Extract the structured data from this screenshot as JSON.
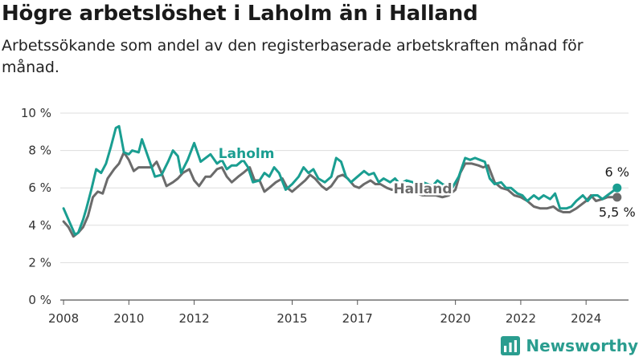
{
  "header": {
    "title": "Högre arbetslöshet i Laholm än i Halland",
    "subtitle": "Arbetssökande som andel av den registerbaserade arbetskraften månad för månad."
  },
  "brand": {
    "name": "Newsworthy",
    "logo_icon": "bar-chart-logo-icon",
    "color": "#2a9d8f"
  },
  "chart_data": {
    "type": "line",
    "x_unit": "year",
    "xlim": [
      2007.9,
      2025.3
    ],
    "ylim": [
      0,
      10
    ],
    "y_ticks": [
      0,
      2,
      4,
      6,
      8,
      10
    ],
    "y_tick_labels": [
      "0 %",
      "2 %",
      "4 %",
      "6 %",
      "8 %",
      "10 %"
    ],
    "x_ticks": [
      2008,
      2010,
      2012,
      2015,
      2017,
      2020,
      2022,
      2024
    ],
    "x_tick_labels": [
      "2008",
      "2010",
      "2012",
      "2015",
      "2017",
      "2020",
      "2022",
      "2024"
    ],
    "grid": "horizontal",
    "series": [
      {
        "name": "Laholm",
        "color": "#1a9e91",
        "label_x": 2013.6,
        "label_y": 7.6,
        "end_label": "6 %",
        "x": [
          2008.0,
          2008.2,
          2008.35,
          2008.45,
          2008.6,
          2008.7,
          2008.85,
          2009.0,
          2009.15,
          2009.3,
          2009.45,
          2009.6,
          2009.7,
          2009.85,
          2010.0,
          2010.1,
          2010.3,
          2010.4,
          2010.6,
          2010.8,
          2011.0,
          2011.2,
          2011.35,
          2011.5,
          2011.6,
          2011.8,
          2012.0,
          2012.2,
          2012.35,
          2012.5,
          2012.7,
          2012.85,
          2013.0,
          2013.15,
          2013.3,
          2013.5,
          2013.65,
          2013.8,
          2014.0,
          2014.15,
          2014.3,
          2014.45,
          2014.6,
          2014.8,
          2015.0,
          2015.2,
          2015.35,
          2015.5,
          2015.65,
          2015.8,
          2016.0,
          2016.2,
          2016.35,
          2016.5,
          2016.65,
          2016.8,
          2017.0,
          2017.2,
          2017.35,
          2017.5,
          2017.65,
          2017.8,
          2018.0,
          2018.15,
          2018.3,
          2018.5,
          2018.7,
          2018.85,
          2019.0,
          2019.15,
          2019.3,
          2019.45,
          2019.6,
          2019.75,
          2019.9,
          2020.1,
          2020.3,
          2020.45,
          2020.6,
          2020.75,
          2020.9,
          2021.05,
          2021.2,
          2021.4,
          2021.55,
          2021.7,
          2021.9,
          2022.05,
          2022.2,
          2022.4,
          2022.55,
          2022.7,
          2022.9,
          2023.05,
          2023.2,
          2023.4,
          2023.55,
          2023.7,
          2023.9,
          2024.05,
          2024.2,
          2024.35,
          2024.5,
          2024.65,
          2024.8,
          2024.95
        ],
        "values": [
          4.9,
          4.1,
          3.5,
          3.6,
          4.3,
          4.9,
          5.9,
          7.0,
          6.8,
          7.3,
          8.2,
          9.2,
          9.3,
          7.9,
          7.8,
          8.0,
          7.9,
          8.6,
          7.6,
          6.6,
          6.7,
          7.4,
          8.0,
          7.7,
          6.8,
          7.5,
          8.4,
          7.4,
          7.6,
          7.8,
          7.3,
          7.5,
          7.0,
          7.2,
          7.2,
          7.5,
          7.1,
          6.3,
          6.4,
          6.8,
          6.6,
          7.1,
          6.8,
          5.9,
          6.2,
          6.6,
          7.1,
          6.8,
          7.0,
          6.5,
          6.3,
          6.6,
          7.6,
          7.4,
          6.6,
          6.3,
          6.6,
          6.9,
          6.7,
          6.8,
          6.3,
          6.5,
          6.3,
          6.5,
          6.2,
          6.4,
          6.3,
          6.2,
          6.3,
          6.2,
          6.1,
          6.4,
          6.2,
          6.1,
          6.0,
          6.6,
          7.6,
          7.5,
          7.6,
          7.5,
          7.4,
          6.5,
          6.2,
          6.3,
          6.0,
          6.0,
          5.7,
          5.6,
          5.3,
          5.6,
          5.4,
          5.6,
          5.4,
          5.7,
          4.9,
          4.9,
          5.0,
          5.3,
          5.6,
          5.3,
          5.6,
          5.6,
          5.4,
          5.6,
          5.8,
          6.0
        ]
      },
      {
        "name": "Halland",
        "color": "#6b6b6b",
        "label_x": 2019.0,
        "label_y": 5.7,
        "end_label": "5,5 %",
        "x": [
          2008.0,
          2008.15,
          2008.3,
          2008.45,
          2008.6,
          2008.75,
          2008.9,
          2009.05,
          2009.2,
          2009.35,
          2009.55,
          2009.7,
          2009.85,
          2010.0,
          2010.15,
          2010.3,
          2010.5,
          2010.7,
          2010.85,
          2011.0,
          2011.15,
          2011.35,
          2011.5,
          2011.65,
          2011.85,
          2012.0,
          2012.15,
          2012.35,
          2012.5,
          2012.7,
          2012.85,
          2013.0,
          2013.15,
          2013.35,
          2013.5,
          2013.7,
          2013.85,
          2014.0,
          2014.15,
          2014.3,
          2014.5,
          2014.7,
          2014.85,
          2015.0,
          2015.2,
          2015.4,
          2015.55,
          2015.7,
          2015.9,
          2016.05,
          2016.2,
          2016.4,
          2016.55,
          2016.7,
          2016.9,
          2017.05,
          2017.2,
          2017.4,
          2017.55,
          2017.7,
          2017.9,
          2018.05,
          2018.2,
          2018.4,
          2018.6,
          2018.8,
          2019.0,
          2019.2,
          2019.4,
          2019.6,
          2019.8,
          2020.0,
          2020.15,
          2020.3,
          2020.5,
          2020.7,
          2020.85,
          2021.0,
          2021.2,
          2021.4,
          2021.6,
          2021.8,
          2022.0,
          2022.2,
          2022.4,
          2022.6,
          2022.8,
          2023.0,
          2023.15,
          2023.3,
          2023.5,
          2023.7,
          2023.85,
          2024.0,
          2024.15,
          2024.3,
          2024.5,
          2024.65,
          2024.8,
          2024.95
        ],
        "values": [
          4.2,
          3.9,
          3.4,
          3.6,
          3.9,
          4.5,
          5.5,
          5.8,
          5.7,
          6.5,
          7.0,
          7.3,
          7.9,
          7.5,
          6.9,
          7.1,
          7.1,
          7.1,
          7.4,
          6.8,
          6.1,
          6.3,
          6.5,
          6.8,
          7.0,
          6.4,
          6.1,
          6.6,
          6.6,
          7.0,
          7.1,
          6.6,
          6.3,
          6.6,
          6.8,
          7.1,
          6.4,
          6.4,
          5.8,
          6.0,
          6.3,
          6.5,
          6.0,
          5.8,
          6.1,
          6.4,
          6.7,
          6.5,
          6.1,
          5.9,
          6.1,
          6.6,
          6.7,
          6.5,
          6.1,
          6.0,
          6.2,
          6.4,
          6.2,
          6.2,
          6.0,
          5.9,
          5.9,
          5.8,
          5.7,
          5.7,
          5.6,
          5.6,
          5.6,
          5.5,
          5.6,
          5.9,
          6.8,
          7.3,
          7.3,
          7.2,
          7.1,
          7.2,
          6.3,
          6.0,
          5.9,
          5.6,
          5.5,
          5.3,
          5.0,
          4.9,
          4.9,
          5.0,
          4.8,
          4.7,
          4.7,
          4.9,
          5.1,
          5.3,
          5.6,
          5.3,
          5.4,
          5.5,
          5.5,
          5.5
        ]
      }
    ]
  }
}
